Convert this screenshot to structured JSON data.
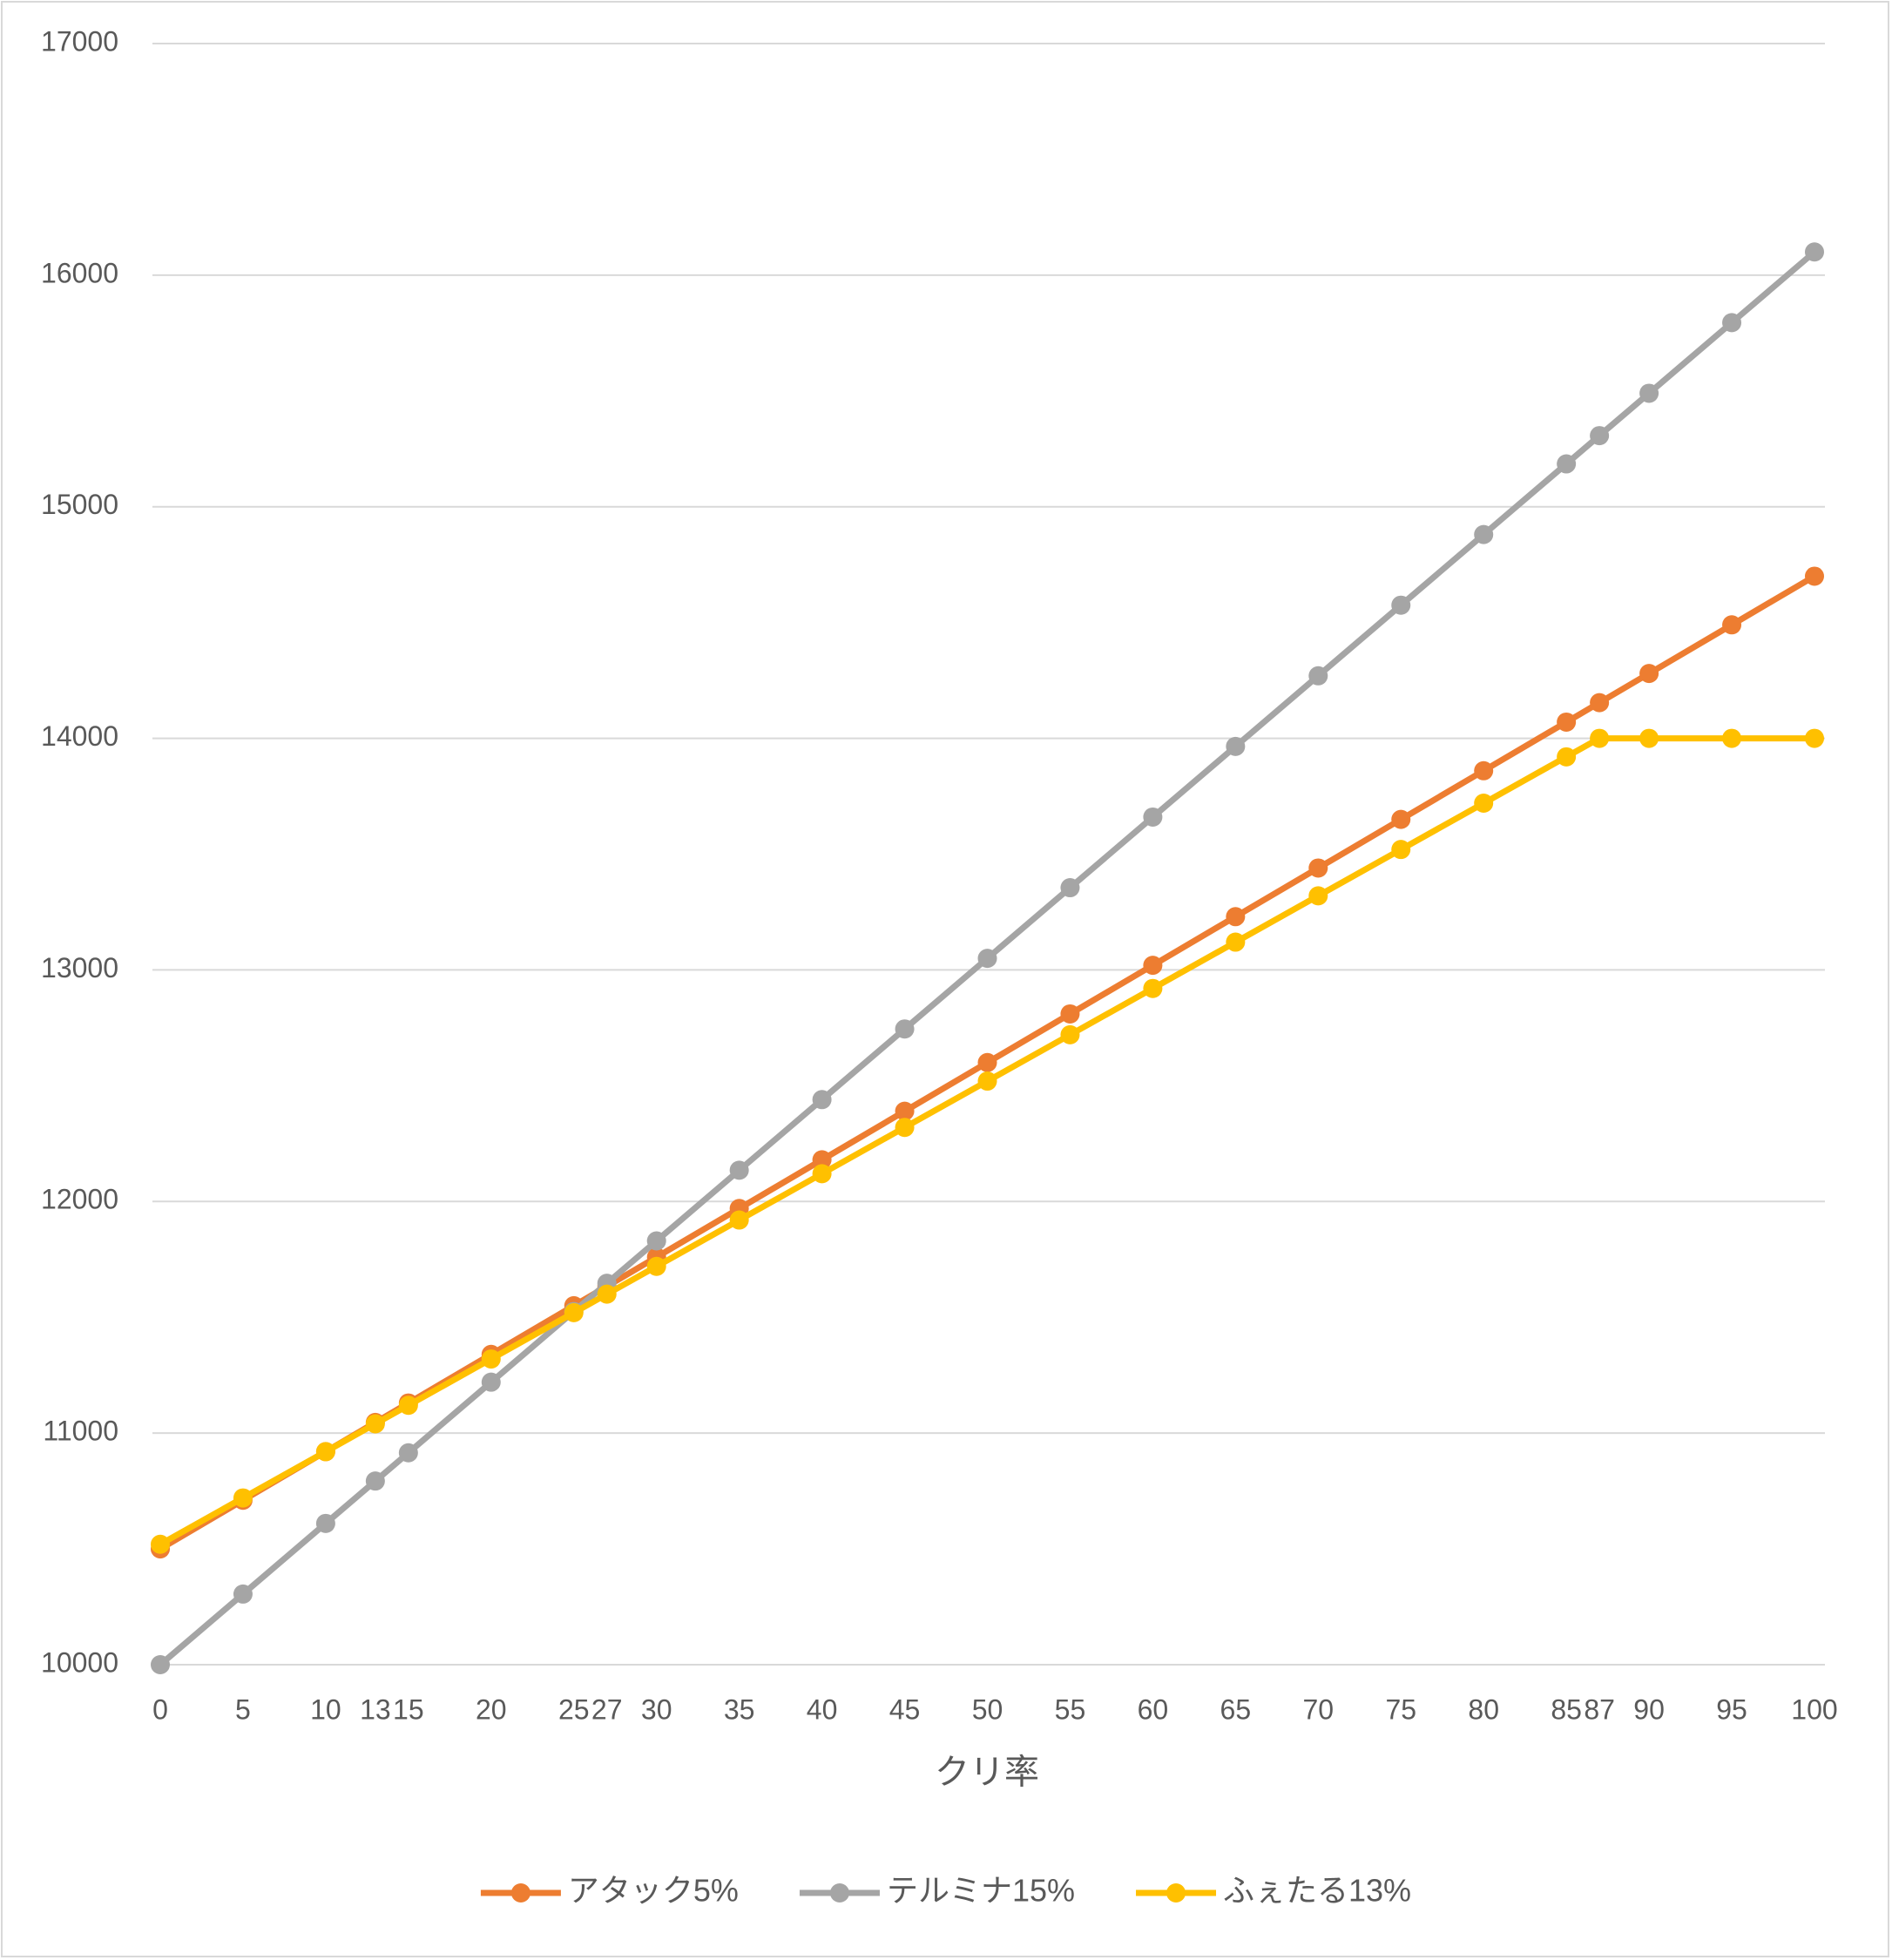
{
  "chart_data": {
    "type": "line",
    "x_label": "クリ率",
    "x": [
      0,
      5,
      10,
      13,
      15,
      20,
      25,
      27,
      30,
      35,
      40,
      45,
      50,
      55,
      60,
      65,
      70,
      75,
      80,
      85,
      87,
      90,
      95,
      100
    ],
    "xlim": [
      0,
      100
    ],
    "xticks": [
      0,
      5,
      10,
      13,
      15,
      20,
      25,
      27,
      30,
      35,
      40,
      45,
      50,
      55,
      60,
      65,
      70,
      75,
      80,
      85,
      87,
      90,
      95,
      100
    ],
    "ylim": [
      10000,
      17000
    ],
    "yticks": [
      10000,
      11000,
      12000,
      13000,
      14000,
      15000,
      16000,
      17000
    ],
    "grid": true,
    "legend": "bottom",
    "series": [
      {
        "name": "アタック5%",
        "color": "#ED7D31",
        "values": [
          10500,
          10710,
          10920,
          11046,
          11130,
          11340,
          11550,
          11634,
          11760,
          11970,
          12180,
          12390,
          12600,
          12810,
          13020,
          13230,
          13440,
          13650,
          13860,
          14070,
          14154,
          14280,
          14490,
          14700
        ]
      },
      {
        "name": "テルミナ15%",
        "color": "#A5A5A5",
        "values": [
          10000,
          10305,
          10610,
          10793,
          10915,
          11220,
          11525,
          11647,
          11830,
          12135,
          12440,
          12745,
          13050,
          13355,
          13660,
          13965,
          14270,
          14575,
          14880,
          15185,
          15307,
          15490,
          15795,
          16100
        ]
      },
      {
        "name": "ふぇたる13%",
        "color": "#FFC000",
        "values": [
          10520,
          10720,
          10920,
          11040,
          11120,
          11320,
          11520,
          11600,
          11720,
          11920,
          12120,
          12320,
          12520,
          12720,
          12920,
          13120,
          13320,
          13520,
          13720,
          13920,
          14000,
          14000,
          14000,
          14000
        ]
      }
    ]
  }
}
